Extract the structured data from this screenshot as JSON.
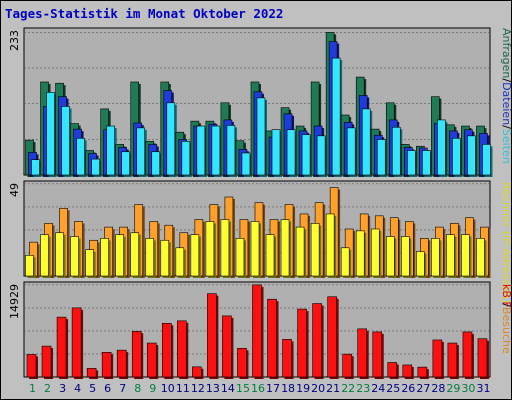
{
  "title": "Tages-Statistik im Monat Oktober 2022",
  "colors": {
    "background": "#c0c0c0",
    "panel": "#b0b0b0",
    "title": "#0000c0",
    "weekday_label": "#000080",
    "weekend_label": "#008040",
    "anfragen": "#1f7a55",
    "dateien": "#1f3bdb",
    "seiten": "#33e5ff",
    "besuche": "#ffa02a",
    "rechner": "#ffff30",
    "kb": "#ff1010"
  },
  "chart_data": [
    {
      "type": "bar",
      "categories": [
        "1",
        "2",
        "3",
        "4",
        "5",
        "6",
        "7",
        "8",
        "9",
        "10",
        "11",
        "12",
        "13",
        "14",
        "15",
        "16",
        "17",
        "18",
        "19",
        "20",
        "21",
        "22",
        "23",
        "24",
        "25",
        "26",
        "27",
        "28",
        "29",
        "30",
        "31"
      ],
      "weekend_days": [
        "1",
        "2",
        "8",
        "9",
        "15",
        "16",
        "22",
        "23",
        "29",
        "30"
      ],
      "ylabel_max": "233",
      "ylim": [
        0,
        233
      ],
      "legend_parts": [
        "Anfragen",
        "Dateien",
        "Seiten"
      ],
      "series": [
        {
          "name": "Anfragen",
          "values": [
            57,
            152,
            150,
            84,
            40,
            108,
            50,
            152,
            55,
            152,
            70,
            88,
            88,
            118,
            56,
            152,
            72,
            110,
            80,
            152,
            233,
            98,
            160,
            75,
            118,
            50,
            47,
            128,
            82,
            80,
            80
          ]
        },
        {
          "name": "Dateien",
          "values": [
            37,
            112,
            128,
            75,
            35,
            74,
            45,
            85,
            50,
            138,
            58,
            80,
            83,
            90,
            42,
            136,
            62,
            100,
            72,
            80,
            218,
            86,
            130,
            65,
            90,
            45,
            44,
            84,
            72,
            74,
            68
          ]
        },
        {
          "name": "Seiten",
          "values": [
            25,
            135,
            112,
            60,
            26,
            80,
            38,
            77,
            38,
            118,
            55,
            80,
            80,
            81,
            36,
            126,
            74,
            74,
            66,
            64,
            191,
            77,
            108,
            58,
            78,
            40,
            40,
            90,
            60,
            64,
            50
          ]
        }
      ]
    },
    {
      "type": "bar",
      "categories": [
        "1",
        "2",
        "3",
        "4",
        "5",
        "6",
        "7",
        "8",
        "9",
        "10",
        "11",
        "12",
        "13",
        "14",
        "15",
        "16",
        "17",
        "18",
        "19",
        "20",
        "21",
        "22",
        "23",
        "24",
        "25",
        "26",
        "27",
        "28",
        "29",
        "30",
        "31"
      ],
      "ylabel_max": "49",
      "ylim": [
        0,
        49
      ],
      "legend_parts": [
        "Rechner (IP-Adressen)",
        "Besuche"
      ],
      "series": [
        {
          "name": "Besuche",
          "values": [
            18,
            28,
            36,
            29,
            19,
            26,
            26,
            38,
            29,
            27,
            23,
            30,
            38,
            42,
            30,
            39,
            30,
            38,
            33,
            39,
            47,
            25,
            33,
            32,
            31,
            29,
            20,
            26,
            28,
            31,
            26
          ]
        },
        {
          "name": "Rechner (IP-Adressen)",
          "values": [
            11,
            22,
            23,
            21,
            14,
            20,
            22,
            23,
            20,
            19,
            15,
            22,
            29,
            30,
            20,
            29,
            22,
            30,
            26,
            28,
            33,
            15,
            24,
            25,
            21,
            21,
            13,
            20,
            22,
            22,
            20
          ]
        }
      ]
    },
    {
      "type": "bar",
      "categories": [
        "1",
        "2",
        "3",
        "4",
        "5",
        "6",
        "7",
        "8",
        "9",
        "10",
        "11",
        "12",
        "13",
        "14",
        "15",
        "16",
        "17",
        "18",
        "19",
        "20",
        "21",
        "22",
        "23",
        "24",
        "25",
        "26",
        "27",
        "28",
        "29",
        "30",
        "31"
      ],
      "ylabel_max": "14929",
      "ylim": [
        0,
        14929
      ],
      "legend_parts": [
        "kB F"
      ],
      "series": [
        {
          "name": "kB F",
          "values": [
            3650,
            5005,
            9700,
            11200,
            1400,
            4000,
            4350,
            7400,
            5500,
            8700,
            9100,
            1650,
            13500,
            9900,
            4650,
            14929,
            12600,
            6100,
            11000,
            11900,
            13000,
            3700,
            7800,
            7300,
            2350,
            1950,
            1600,
            6000,
            5500,
            7300,
            6200
          ]
        }
      ]
    }
  ]
}
